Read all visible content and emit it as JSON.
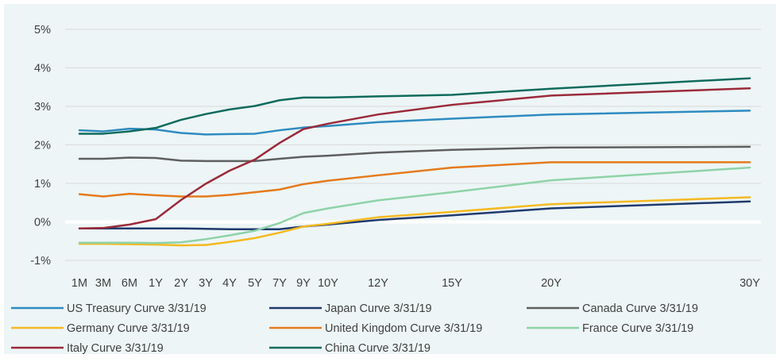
{
  "chart_data": {
    "type": "line",
    "title": "",
    "xlabel": "",
    "ylabel": "",
    "categories": [
      "1M",
      "3M",
      "6M",
      "1Y",
      "2Y",
      "3Y",
      "4Y",
      "5Y",
      "7Y",
      "9Y",
      "10Y",
      "12Y",
      "15Y",
      "20Y",
      "30Y"
    ],
    "ylim": [
      -1,
      5
    ],
    "y_ticks": [
      -1,
      0,
      1,
      2,
      3,
      4,
      5
    ],
    "y_tick_labels": [
      "-1%",
      "0%",
      "1%",
      "2%",
      "3%",
      "4%",
      "5%"
    ],
    "grid": true,
    "legend_position": "bottom",
    "background": "#edf5f6",
    "series": [
      {
        "name": "US Treasury Curve 3/31/19",
        "color": "#2e8bc0",
        "values": [
          2.38,
          2.35,
          2.42,
          2.4,
          2.31,
          2.27,
          2.28,
          2.29,
          2.38,
          2.45,
          2.49,
          2.59,
          2.68,
          2.79,
          2.89
        ]
      },
      {
        "name": "Japan Curve 3/31/19",
        "color": "#1f3a6e",
        "values": [
          -0.17,
          -0.17,
          -0.17,
          -0.17,
          -0.17,
          -0.18,
          -0.19,
          -0.19,
          -0.19,
          -0.12,
          -0.07,
          0.05,
          0.17,
          0.35,
          0.53
        ]
      },
      {
        "name": "Canada Curve 3/31/19",
        "color": "#5f5f5f",
        "values": [
          1.64,
          1.64,
          1.67,
          1.66,
          1.59,
          1.58,
          1.58,
          1.58,
          1.64,
          1.69,
          1.72,
          1.8,
          1.87,
          1.93,
          1.95
        ]
      },
      {
        "name": "Germany Curve 3/31/19",
        "color": "#f5b921",
        "values": [
          -0.57,
          -0.57,
          -0.58,
          -0.59,
          -0.61,
          -0.6,
          -0.52,
          -0.42,
          -0.28,
          -0.12,
          -0.05,
          0.12,
          0.26,
          0.46,
          0.64
        ]
      },
      {
        "name": "United Kingdom Curve 3/31/19",
        "color": "#e57a1c",
        "values": [
          0.72,
          0.66,
          0.73,
          0.69,
          0.66,
          0.66,
          0.7,
          0.77,
          0.84,
          0.98,
          1.07,
          1.21,
          1.41,
          1.55,
          1.55
        ]
      },
      {
        "name": "France Curve 3/31/19",
        "color": "#8ed3a8",
        "values": [
          -0.54,
          -0.54,
          -0.54,
          -0.55,
          -0.53,
          -0.45,
          -0.35,
          -0.23,
          -0.03,
          0.23,
          0.35,
          0.56,
          0.77,
          1.08,
          1.41
        ]
      },
      {
        "name": "Italy Curve 3/31/19",
        "color": "#9b2a3a",
        "values": [
          -0.17,
          -0.16,
          -0.07,
          0.07,
          0.57,
          0.99,
          1.33,
          1.62,
          2.05,
          2.41,
          2.55,
          2.79,
          3.04,
          3.28,
          3.47
        ]
      },
      {
        "name": "China Curve 3/31/19",
        "color": "#0f6b5c",
        "values": [
          2.29,
          2.29,
          2.35,
          2.44,
          2.65,
          2.8,
          2.92,
          3.01,
          3.16,
          3.23,
          3.23,
          3.26,
          3.3,
          3.46,
          3.73
        ]
      }
    ]
  }
}
